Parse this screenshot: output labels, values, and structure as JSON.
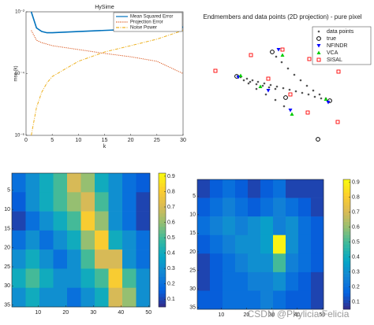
{
  "chart_data": [
    {
      "type": "line",
      "title": "HySime",
      "xlabel": "k",
      "ylabel": "mse (k)",
      "yscale": "log",
      "x": [
        1,
        2,
        3,
        4,
        5,
        10,
        15,
        20,
        25,
        30
      ],
      "series": [
        {
          "name": "Mean Squared Error",
          "color": "#0072bd",
          "style": "solid",
          "values": [
            0.01,
            0.003,
            0.0023,
            0.0021,
            0.0021,
            0.0023,
            0.0025,
            0.0027,
            0.0029,
            0.0032
          ]
        },
        {
          "name": "Projection Error",
          "color": "#d95319",
          "style": "dotted",
          "values": [
            0.0025,
            0.0012,
            0.001,
            0.0009,
            0.0008,
            0.0006,
            0.00045,
            0.00035,
            0.00025,
            0.0001
          ]
        },
        {
          "name": "Noise Power",
          "color": "#edb120",
          "style": "dashdot",
          "values": [
            1e-06,
            8e-06,
            2.5e-05,
            5e-05,
            8e-05,
            0.00025,
            0.0005,
            0.0008,
            0.0013,
            0.0025
          ]
        }
      ],
      "xlim": [
        0,
        30
      ],
      "xticks": [
        0,
        5,
        10,
        15,
        20,
        25,
        30
      ],
      "ylim": [
        1e-06,
        0.01
      ],
      "yticks": [
        {
          "value": 0.01,
          "label": "10⁻²"
        },
        {
          "value": 0.0001,
          "label": "10⁻⁴"
        },
        {
          "value": 1e-06,
          "label": "10⁻⁶"
        }
      ],
      "legend": "upper right"
    },
    {
      "type": "scatter",
      "title": "Endmembers and data points (2D projection) - pure pixel",
      "xlim": [
        0,
        225
      ],
      "ylim": [
        0,
        150
      ],
      "legend": "upper right",
      "series": [
        {
          "name": "data points",
          "color": "#555555",
          "marker": "dot",
          "x": [
            60,
            68,
            75,
            82,
            90,
            98,
            106,
            114,
            122,
            130,
            138,
            146,
            154,
            162,
            64,
            72,
            80,
            88,
            96,
            104,
            105,
            112,
            120,
            128,
            136,
            144,
            152,
            160,
            168,
            70,
            80,
            92,
            104,
            115
          ],
          "y": [
            92,
            90,
            88,
            86,
            84,
            82,
            80,
            78,
            76,
            74,
            72,
            70,
            67,
            65,
            88,
            86,
            83,
            81,
            79,
            77,
            118,
            111,
            103,
            95,
            88,
            81,
            75,
            70,
            65,
            84,
            77,
            70,
            63,
            55
          ]
        },
        {
          "name": "true",
          "color": "#000000",
          "marker": "circle",
          "x": [
            100,
            55,
            173,
            158,
            117
          ],
          "y": [
            124,
            93,
            62,
            13,
            66
          ]
        },
        {
          "name": "NFINDR",
          "color": "#0000ff",
          "marker": "triangle-down",
          "x": [
            57,
            108,
            171,
            123,
            95
          ],
          "y": [
            92,
            127,
            60,
            50,
            75
          ]
        },
        {
          "name": "VCA",
          "color": "#00cc00",
          "marker": "triangle-up",
          "x": [
            60,
            113,
            168,
            125,
            85
          ],
          "y": [
            94,
            120,
            64,
            45,
            80
          ]
        },
        {
          "name": "SISAL",
          "color": "#ff0000",
          "marker": "square",
          "x": [
            28,
            73,
            113,
            147,
            184,
            95,
            123,
            145,
            183
          ],
          "y": [
            100,
            120,
            127,
            115,
            99,
            90,
            70,
            47,
            35
          ]
        }
      ]
    },
    {
      "type": "heatmap",
      "colormap": "parula",
      "xlim": [
        0.5,
        50.5
      ],
      "ylim": [
        0.5,
        35.5
      ],
      "xticks": [
        10,
        20,
        30,
        40,
        50
      ],
      "yticks": [
        5,
        10,
        15,
        20,
        25,
        30,
        35
      ],
      "clim": [
        0.05,
        0.92
      ],
      "cticks": [
        0.1,
        0.2,
        0.3,
        0.4,
        0.5,
        0.6,
        0.7,
        0.8,
        0.9
      ],
      "values": [
        [
          0.2,
          0.3,
          0.4,
          0.5,
          0.7,
          0.6,
          0.4,
          0.3,
          0.2,
          0.15
        ],
        [
          0.15,
          0.3,
          0.4,
          0.5,
          0.6,
          0.7,
          0.5,
          0.3,
          0.2,
          0.1
        ],
        [
          0.1,
          0.2,
          0.3,
          0.4,
          0.5,
          0.8,
          0.6,
          0.3,
          0.2,
          0.1
        ],
        [
          0.2,
          0.3,
          0.2,
          0.3,
          0.4,
          0.6,
          0.8,
          0.4,
          0.3,
          0.2
        ],
        [
          0.3,
          0.4,
          0.3,
          0.2,
          0.3,
          0.5,
          0.7,
          0.7,
          0.3,
          0.2
        ],
        [
          0.4,
          0.5,
          0.4,
          0.3,
          0.3,
          0.4,
          0.5,
          0.8,
          0.5,
          0.3
        ],
        [
          0.3,
          0.4,
          0.3,
          0.3,
          0.2,
          0.3,
          0.4,
          0.7,
          0.6,
          0.3
        ]
      ]
    },
    {
      "type": "heatmap",
      "colormap": "parula",
      "xlim": [
        0.5,
        50.5
      ],
      "ylim": [
        0.5,
        35.5
      ],
      "xticks": [
        10,
        20,
        30,
        40,
        50
      ],
      "yticks": [
        5,
        10,
        15,
        20,
        25,
        30,
        35
      ],
      "clim": [
        0.05,
        0.92
      ],
      "cticks": [
        0.1,
        0.2,
        0.3,
        0.4,
        0.5,
        0.6,
        0.7,
        0.8,
        0.9
      ],
      "values": [
        [
          0.1,
          0.15,
          0.2,
          0.15,
          0.1,
          0.15,
          0.2,
          0.1,
          0.1,
          0.1
        ],
        [
          0.15,
          0.2,
          0.25,
          0.2,
          0.15,
          0.2,
          0.25,
          0.2,
          0.15,
          0.1
        ],
        [
          0.2,
          0.25,
          0.3,
          0.25,
          0.3,
          0.35,
          0.25,
          0.3,
          0.2,
          0.15
        ],
        [
          0.15,
          0.2,
          0.25,
          0.3,
          0.3,
          0.35,
          0.9,
          0.3,
          0.2,
          0.15
        ],
        [
          0.1,
          0.15,
          0.2,
          0.25,
          0.3,
          0.3,
          0.5,
          0.25,
          0.2,
          0.15
        ],
        [
          0.1,
          0.15,
          0.2,
          0.2,
          0.25,
          0.25,
          0.3,
          0.2,
          0.15,
          0.1
        ],
        [
          0.15,
          0.15,
          0.2,
          0.2,
          0.2,
          0.25,
          0.2,
          0.15,
          0.15,
          0.1
        ]
      ]
    }
  ],
  "watermark": "CSDN @Phylicia Felicia"
}
